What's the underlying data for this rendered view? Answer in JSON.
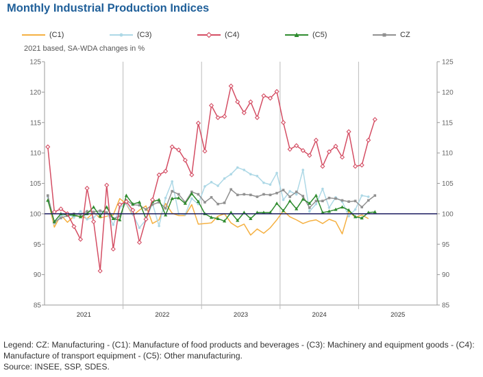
{
  "chart_data": {
    "type": "line",
    "title": "Monthly Industrial Production Indices",
    "subtitle": "2021 based, SA-WDA changes in %",
    "ylim": [
      85,
      125
    ],
    "yticks": [
      85,
      90,
      95,
      100,
      105,
      110,
      115,
      120,
      125
    ],
    "reference_line": 100,
    "x_start": "2021-01",
    "x_end": "2025-12",
    "years": [
      "2021",
      "2022",
      "2023",
      "2024",
      "2025"
    ],
    "series": [
      {
        "key": "c1",
        "name": "(C1)",
        "color": "#f5b041",
        "marker": "none",
        "values": [
          102.5,
          97.8,
          99.8,
          98.6,
          99.6,
          99.6,
          99.2,
          100.2,
          99.3,
          99.6,
          99.8,
          102.5,
          101.6,
          99.7,
          100.6,
          101.3,
          98.4,
          99.0,
          101.7,
          100.1,
          99.7,
          99.7,
          101.5,
          98.3,
          98.4,
          98.5,
          99.6,
          100.0,
          98.5,
          97.8,
          98.3,
          96.5,
          97.5,
          96.8,
          97.7,
          99.0,
          100.5,
          99.5,
          99.0,
          98.4,
          98.8,
          99.0,
          98.4,
          99.1,
          98.7,
          96.7,
          100.4,
          99.4,
          99.8,
          99.2
        ]
      },
      {
        "key": "c3",
        "name": "(C3)",
        "color": "#add8e6",
        "marker": "dot",
        "values": [
          102.8,
          98.4,
          99.6,
          100.0,
          99.4,
          100.4,
          99.1,
          99.4,
          100.3,
          100.2,
          98.2,
          101.0,
          101.7,
          99.9,
          97.7,
          99.0,
          101.7,
          98.0,
          102.6,
          105.3,
          100.0,
          99.9,
          102.5,
          101.6,
          104.5,
          105.2,
          104.6,
          105.8,
          106.5,
          107.6,
          107.2,
          106.5,
          106.2,
          105.1,
          104.8,
          106.7,
          102.3,
          103.7,
          103.2,
          107.2,
          100.4,
          101.6,
          104.1,
          101.0,
          102.7,
          102.0,
          99.6,
          100.7,
          103.0,
          102.8
        ]
      },
      {
        "key": "c4",
        "name": "(C4)",
        "color": "#d44d63",
        "marker": "diamond",
        "values": [
          111.0,
          100.3,
          100.8,
          100.0,
          97.9,
          95.8,
          104.2,
          98.7,
          90.6,
          104.7,
          94.2,
          101.5,
          102.0,
          100.6,
          95.3,
          99.1,
          102.3,
          106.4,
          107.0,
          111.0,
          110.5,
          108.8,
          106.4,
          114.9,
          110.3,
          117.8,
          115.8,
          116.0,
          121.0,
          118.4,
          116.6,
          118.4,
          115.8,
          119.4,
          119.0,
          120.1,
          115.0,
          110.6,
          111.2,
          110.4,
          109.6,
          112.1,
          107.8,
          110.2,
          111.1,
          109.3,
          113.5,
          107.8,
          108.0,
          112.1,
          115.5
        ]
      },
      {
        "key": "c5",
        "name": "(C5)",
        "color": "#2e8b2e",
        "marker": "triangle",
        "values": [
          102.2,
          98.7,
          100.0,
          99.8,
          99.8,
          99.5,
          100.0,
          101.1,
          99.6,
          101.1,
          99.2,
          99.0,
          103.0,
          101.6,
          101.9,
          99.2,
          102.0,
          102.3,
          99.8,
          102.5,
          102.6,
          101.7,
          103.3,
          102.0,
          100.0,
          99.4,
          99.2,
          98.8,
          100.2,
          98.9,
          100.2,
          99.2,
          100.2,
          100.2,
          100.2,
          101.7,
          100.5,
          102.1,
          100.8,
          102.4,
          101.7,
          103.0,
          100.2,
          100.4,
          100.7,
          101.1,
          100.6,
          99.5,
          99.3,
          100.2,
          100.3
        ]
      },
      {
        "key": "cz",
        "name": "CZ",
        "color": "#909090",
        "marker": "square",
        "values": [
          103.0,
          98.6,
          99.3,
          99.7,
          100.0,
          99.9,
          100.4,
          100.3,
          100.5,
          100.2,
          99.2,
          99.6,
          102.2,
          101.5,
          101.4,
          100.7,
          101.5,
          101.9,
          100.9,
          103.7,
          103.2,
          101.9,
          103.6,
          103.2,
          101.9,
          102.7,
          101.6,
          101.8,
          104.0,
          103.1,
          103.2,
          103.1,
          102.8,
          103.2,
          103.1,
          103.4,
          103.9,
          102.8,
          103.6,
          102.9,
          101.0,
          102.1,
          102.1,
          102.6,
          102.5,
          102.2,
          102.0,
          102.1,
          101.1,
          102.2,
          103.0
        ]
      }
    ]
  },
  "footer": {
    "legend_note": "Legend: CZ: Manufacturing - (C1): Manufacture of food products and beverages - (C3): Machinery and equipment goods - (C4): Manufacture of transport equipment - (C5): Other manufacturing.",
    "source": "Source: INSEE, SSP, SDES."
  }
}
